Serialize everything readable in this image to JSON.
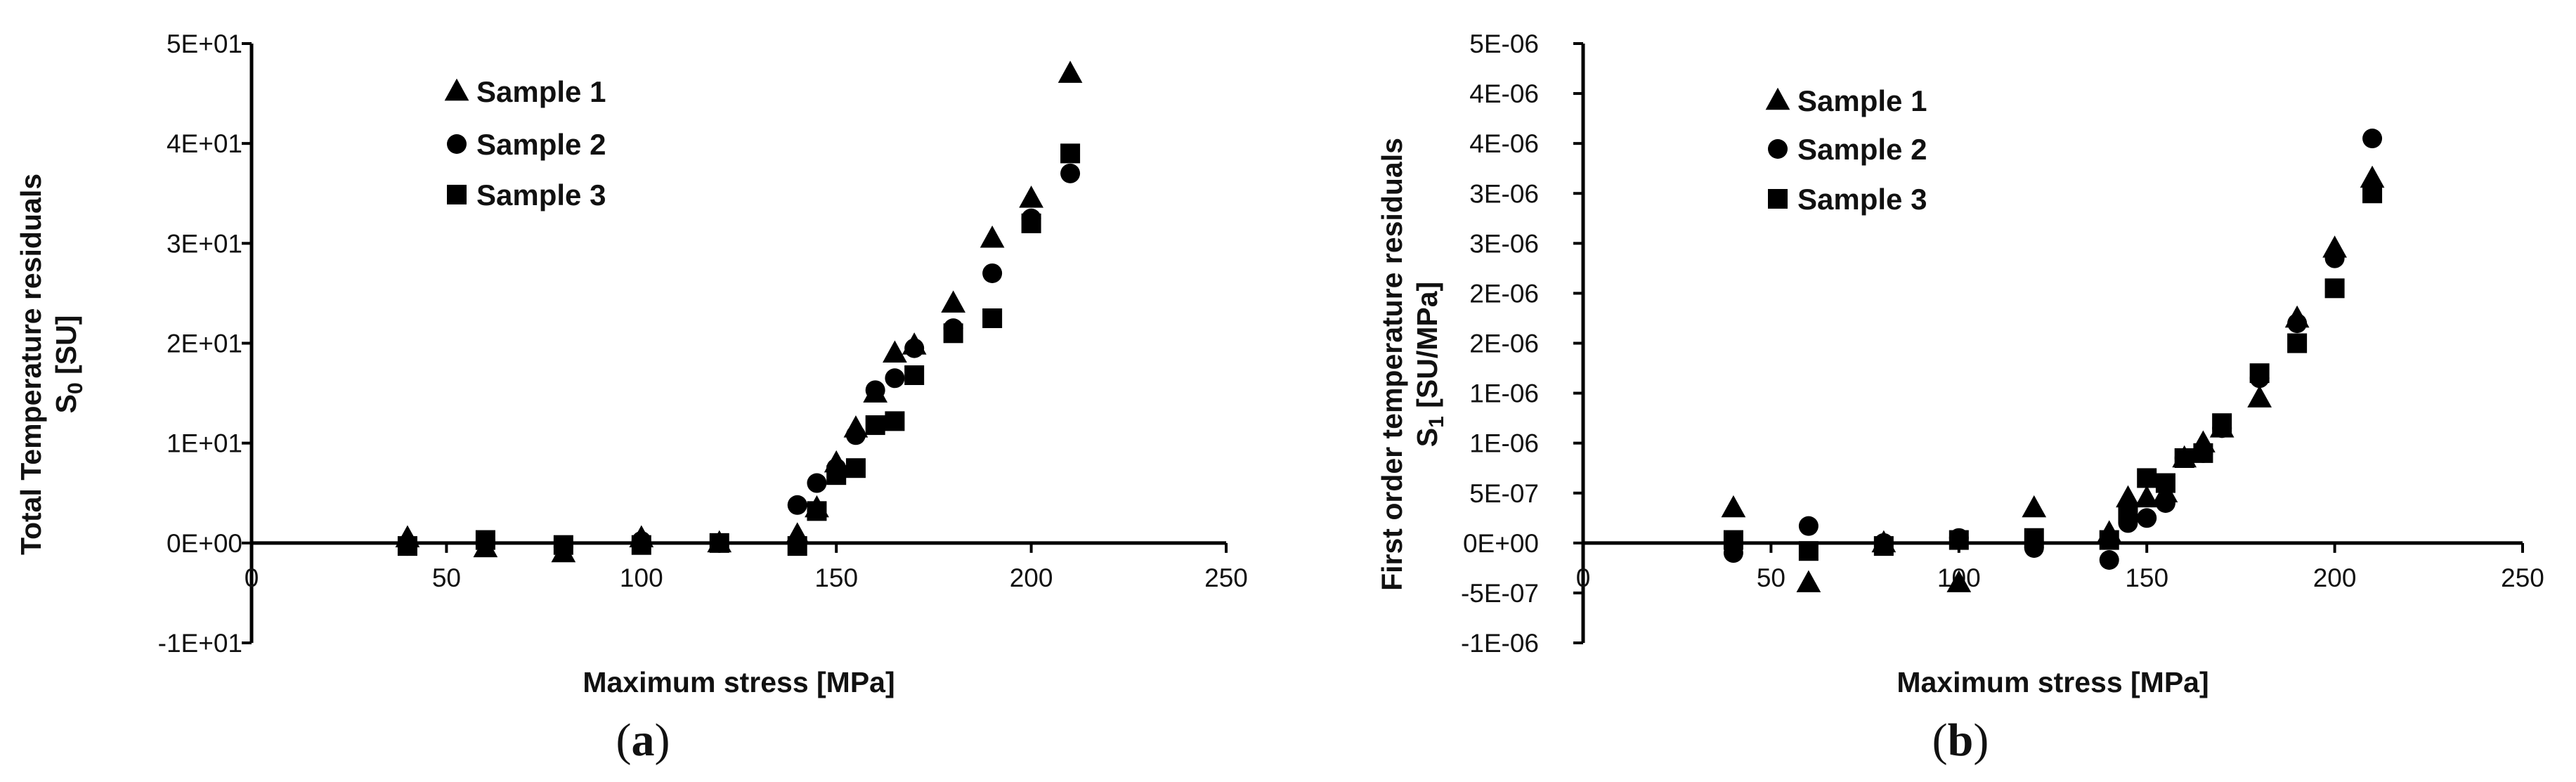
{
  "chart_data": [
    {
      "type": "scatter",
      "caption_open": "(",
      "caption_letter": "a",
      "caption_close": ")",
      "xlabel": "Maximum stress [MPa]",
      "ylabel_line1": "Total Temperature residuals",
      "ylabel_line2_main": "S",
      "ylabel_line2_sub": "0",
      "ylabel_line2_rest": " [SU]",
      "xlim": [
        0,
        250
      ],
      "ylim": [
        -10,
        50
      ],
      "xticks": [
        0,
        50,
        100,
        150,
        200,
        250
      ],
      "xtick_labels": [
        "0",
        "50",
        "100",
        "150",
        "200",
        "250"
      ],
      "yticks": [
        -10,
        0,
        10,
        20,
        30,
        40,
        50
      ],
      "ytick_labels": [
        "-1E+01",
        "0E+00",
        "1E+01",
        "2E+01",
        "3E+01",
        "4E+01",
        "5E+01"
      ],
      "legend_position": "top-left",
      "series": [
        {
          "name": "Sample 1",
          "marker": "triangle",
          "x": [
            40,
            60,
            80,
            100,
            120,
            140,
            145,
            150,
            155,
            160,
            165,
            170,
            180,
            190,
            200,
            210
          ],
          "y": [
            0.5,
            -0.5,
            -1.0,
            0.5,
            0.0,
            0.8,
            3.5,
            8.0,
            11.5,
            15.0,
            19.0,
            19.8,
            24.0,
            30.5,
            34.5,
            47.0
          ]
        },
        {
          "name": "Sample 2",
          "marker": "circle",
          "x": [
            40,
            60,
            80,
            100,
            120,
            140,
            145,
            150,
            155,
            160,
            165,
            170,
            180,
            190,
            200,
            210
          ],
          "y": [
            -0.3,
            0.2,
            -0.4,
            0.2,
            0.0,
            3.8,
            6.0,
            7.5,
            10.8,
            15.3,
            16.5,
            19.5,
            21.5,
            27.0,
            32.5,
            37.0
          ]
        },
        {
          "name": "Sample 3",
          "marker": "square",
          "x": [
            40,
            60,
            80,
            100,
            120,
            140,
            145,
            150,
            155,
            160,
            165,
            170,
            180,
            190,
            200,
            210
          ],
          "y": [
            -0.3,
            0.3,
            -0.2,
            -0.2,
            0.0,
            -0.3,
            3.2,
            6.8,
            7.5,
            11.8,
            12.2,
            16.8,
            21.0,
            22.5,
            32.0,
            39.0
          ]
        }
      ]
    },
    {
      "type": "scatter",
      "caption_open": "(",
      "caption_letter": "b",
      "caption_close": ")",
      "xlabel": "Maximum stress [MPa]",
      "ylabel_line1": "First order temperature residuals",
      "ylabel_line2_main": "S",
      "ylabel_line2_sub": "1",
      "ylabel_line2_rest": " [SU/MPa]",
      "xlim": [
        0,
        250
      ],
      "ylim": [
        -1e-06,
        5e-06
      ],
      "xticks": [
        0,
        50,
        100,
        150,
        200,
        250
      ],
      "xtick_labels": [
        "0",
        "50",
        "100",
        "150",
        "200",
        "250"
      ],
      "yticks": [
        -1e-06,
        -5e-07,
        0,
        5e-07,
        1e-06,
        1.5e-06,
        2e-06,
        2.5e-06,
        3e-06,
        3.5e-06,
        4e-06,
        4.5e-06,
        5e-06
      ],
      "ytick_labels": [
        "-1E-06",
        "-5E-07",
        "0E+00",
        "5E-07",
        "1E-06",
        "1E-06",
        "2E-06",
        "2E-06",
        "3E-06",
        "3E-06",
        "4E-06",
        "4E-06",
        "5E-06"
      ],
      "legend_position": "top-left",
      "series": [
        {
          "name": "Sample 1",
          "marker": "triangle",
          "x": [
            40,
            60,
            80,
            100,
            120,
            140,
            145,
            150,
            155,
            160,
            165,
            170,
            180,
            190,
            200,
            210
          ],
          "y": [
            3.5e-07,
            -4e-07,
            0.0,
            -4e-07,
            3.5e-07,
            1e-07,
            4.5e-07,
            4.5e-07,
            5e-07,
            8.5e-07,
            1e-06,
            1.15e-06,
            1.45e-06,
            2.25e-06,
            2.95e-06,
            3.65e-06
          ]
        },
        {
          "name": "Sample 2",
          "marker": "circle",
          "x": [
            40,
            60,
            80,
            100,
            120,
            140,
            145,
            150,
            155,
            160,
            165,
            170,
            180,
            190,
            200,
            210
          ],
          "y": [
            -1e-07,
            1.7e-07,
            0.0,
            5e-08,
            -5e-08,
            -1.7e-07,
            2e-07,
            2.5e-07,
            4e-07,
            8.5e-07,
            9e-07,
            1.15e-06,
            1.65e-06,
            2.2e-06,
            2.85e-06,
            4.05e-06
          ]
        },
        {
          "name": "Sample 3",
          "marker": "square",
          "x": [
            40,
            60,
            80,
            100,
            120,
            140,
            145,
            150,
            155,
            160,
            165,
            170,
            180,
            190,
            200,
            210
          ],
          "y": [
            3e-08,
            -8e-08,
            -3e-08,
            3e-08,
            5e-08,
            3e-08,
            3e-07,
            6.5e-07,
            6e-07,
            8.5e-07,
            9e-07,
            1.2e-06,
            1.7e-06,
            2e-06,
            2.55e-06,
            3.5e-06
          ]
        }
      ]
    }
  ]
}
